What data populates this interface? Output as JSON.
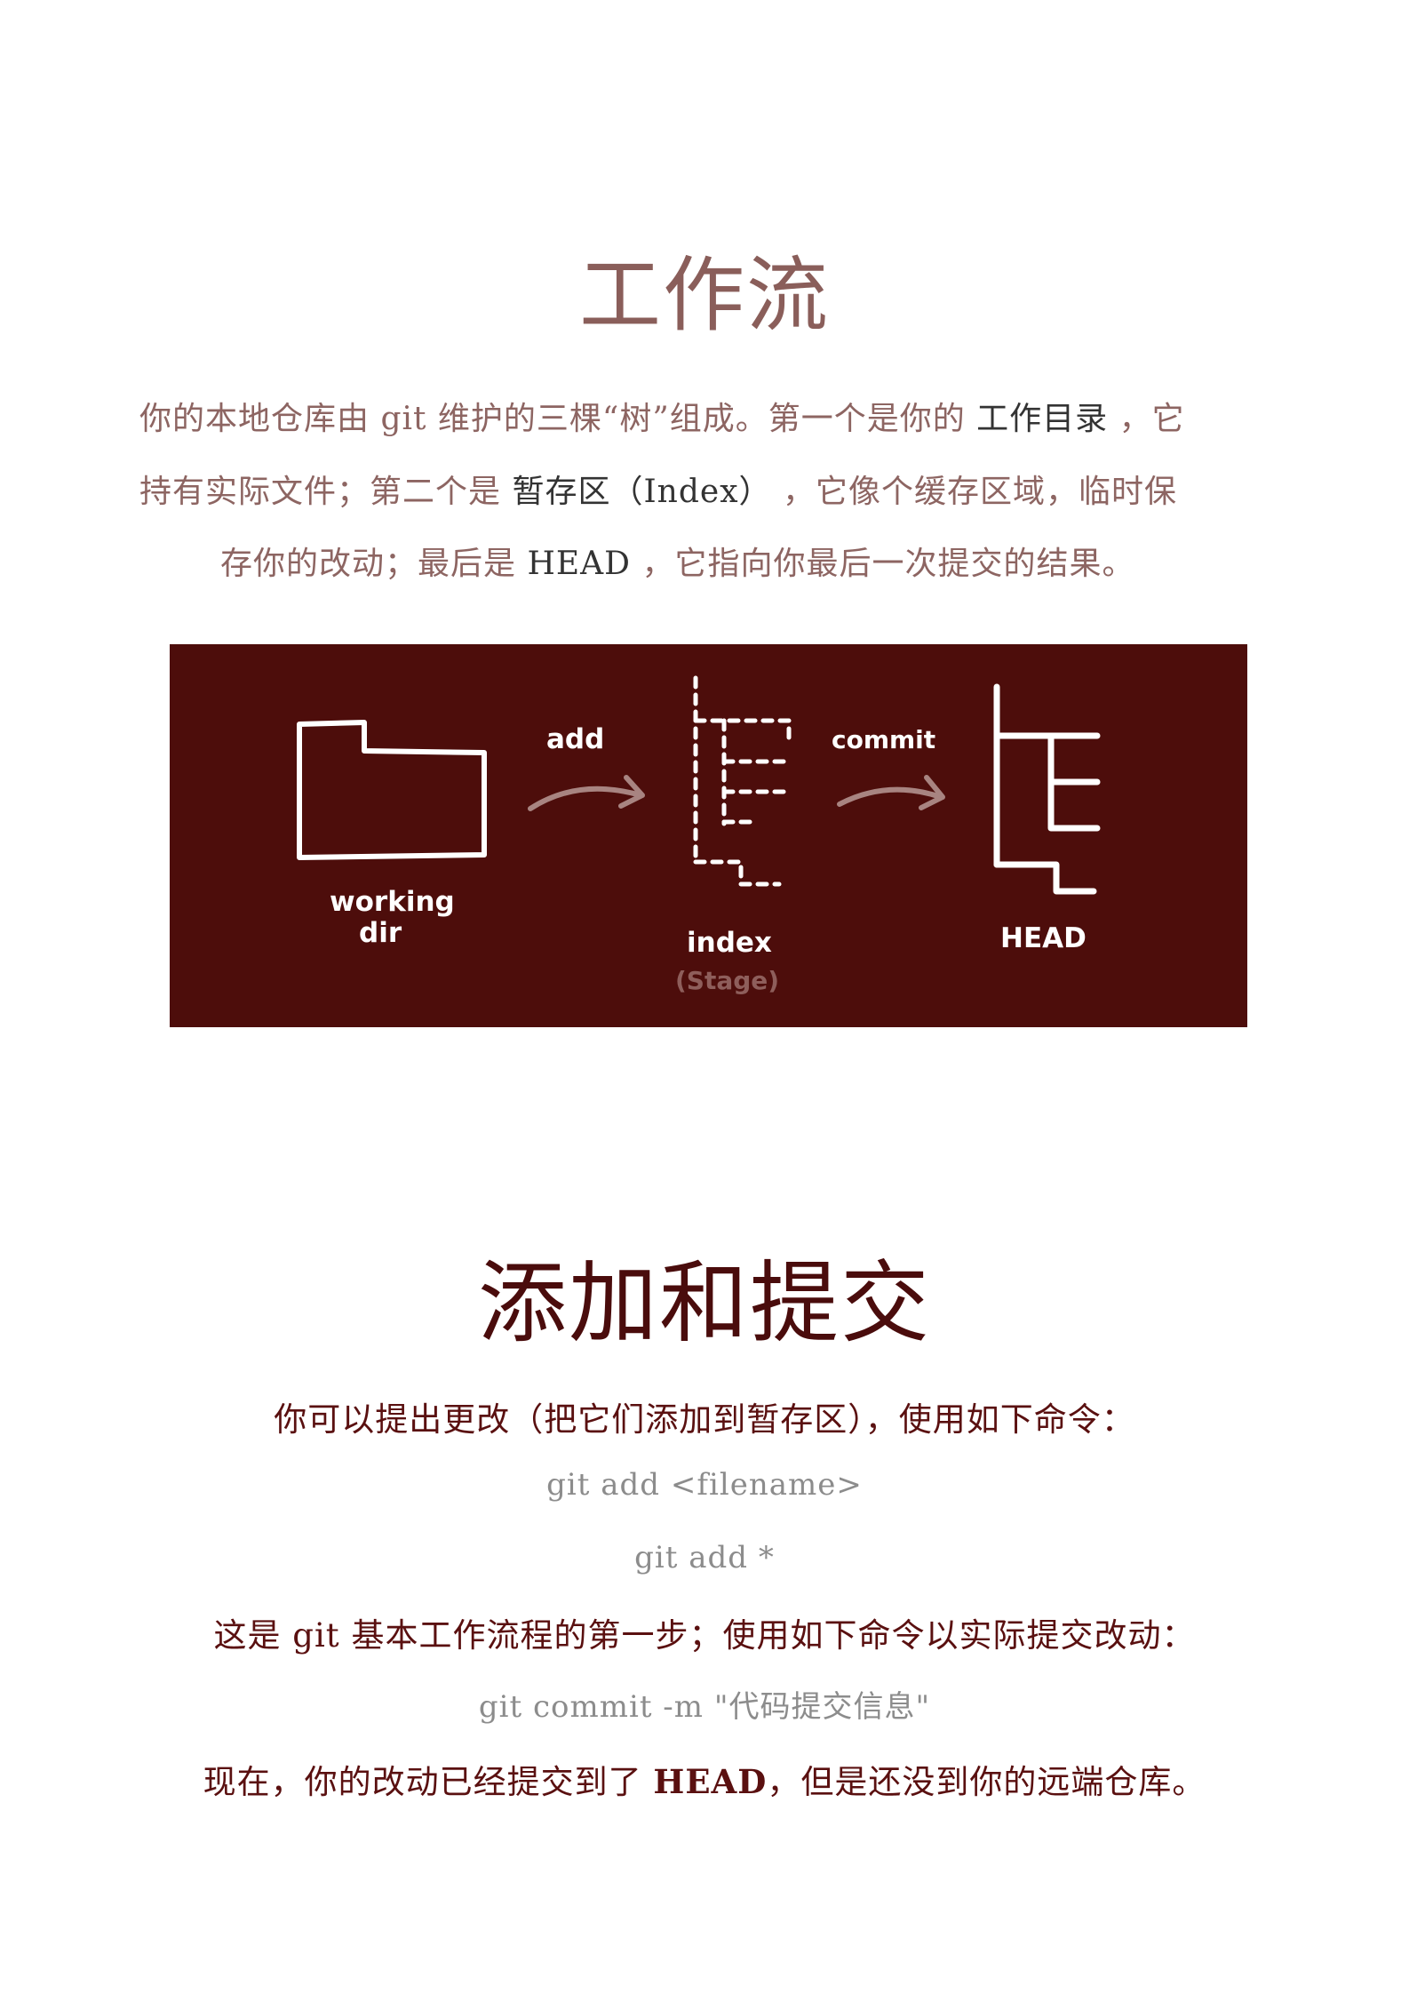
{
  "section1": {
    "title": "工作流",
    "para_line1_a": "你的本地仓库由 git 维护的三棵“树”组成。第一个是你的 ",
    "para_line1_b": "工作目录",
    "para_line1_c": " ，它",
    "para_line2_a": "持有实际文件；第二个是 ",
    "para_line2_b": "暂存区（Index）",
    "para_line2_c": " ，它像个缓存区域，临时保",
    "para_line3_a": "存你的改动；最后是 ",
    "para_line3_b": "HEAD",
    "para_line3_c": " ，它指向你最后一次提交的结果。"
  },
  "diagram": {
    "working_label_1": "working",
    "working_label_2": "dir",
    "add_label": "add",
    "index_label": "index",
    "stage_label": "(Stage)",
    "commit_label": "commit",
    "head_label": "HEAD",
    "background": "#4d0d0b"
  },
  "section2": {
    "title": "添加和提交",
    "line1": "你可以提出更改（把它们添加到暂存区），使用如下命令：",
    "code1": "git add <filename>",
    "code2": "git add *",
    "line2": "这是 git 基本工作流程的第一步；使用如下命令以实际提交改动：",
    "code3": "git commit -m \"代码提交信息\"",
    "line3_a": "现在，你的改动已经提交到了 ",
    "line3_b": "HEAD",
    "line3_c": "，但是还没到你的远端仓库。"
  }
}
